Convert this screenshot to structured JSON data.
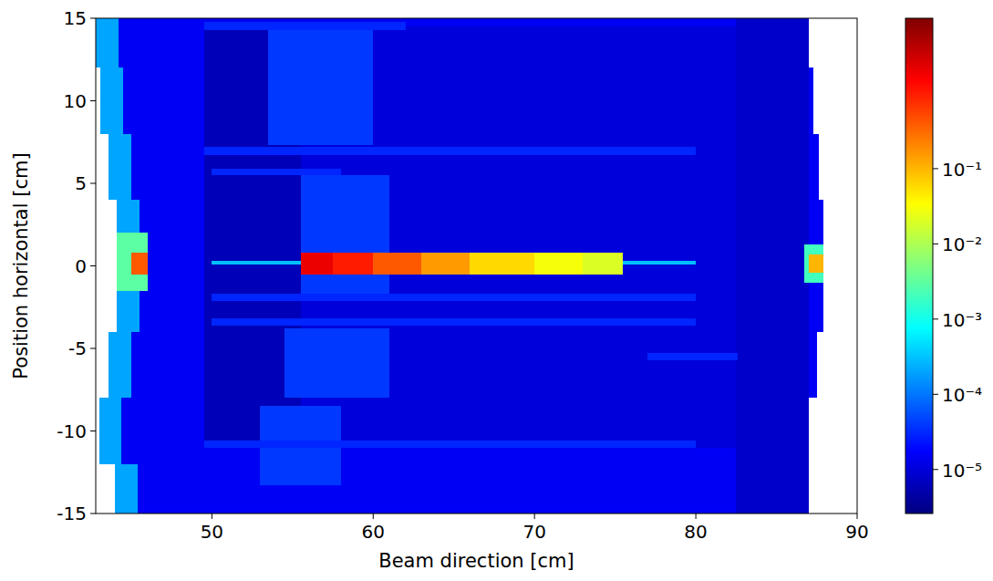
{
  "chart_data": {
    "type": "heatmap",
    "x_label": "Beam direction [cm]",
    "y_label": "Position horizontal [cm]",
    "xlim": [
      42.8,
      90
    ],
    "ylim": [
      -15,
      15
    ],
    "xticks": [
      50,
      60,
      70,
      80,
      90
    ],
    "yticks": [
      -15,
      -10,
      -5,
      0,
      5,
      10,
      15
    ],
    "colorbar": {
      "range": [
        2.6e-06,
        10
      ],
      "log": true,
      "ticks": [
        {
          "value": 1e-05,
          "label": "10⁻⁵"
        },
        {
          "value": 0.0001,
          "label": "10⁻⁴"
        },
        {
          "value": 0.001,
          "label": "10⁻³"
        },
        {
          "value": 0.01,
          "label": "10⁻²"
        },
        {
          "value": 0.1,
          "label": "10⁻¹"
        }
      ]
    },
    "cells": [
      {
        "x": [
          44.0,
          86.5
        ],
        "y": [
          -15,
          -12
        ],
        "value": 1.5e-05
      },
      {
        "x": [
          43.0,
          87.0
        ],
        "y": [
          -12,
          -8
        ],
        "value": 1.5e-05
      },
      {
        "x": [
          43.6,
          87.5
        ],
        "y": [
          -8,
          -4
        ],
        "value": 1.5e-05
      },
      {
        "x": [
          44.1,
          87.9
        ],
        "y": [
          -4,
          0
        ],
        "value": 1.5e-05
      },
      {
        "x": [
          44.1,
          87.9
        ],
        "y": [
          0,
          4
        ],
        "value": 1.5e-05
      },
      {
        "x": [
          43.6,
          87.6
        ],
        "y": [
          4,
          8
        ],
        "value": 1.5e-05
      },
      {
        "x": [
          43.1,
          87.3
        ],
        "y": [
          8,
          12
        ],
        "value": 1.5e-05
      },
      {
        "x": [
          42.8,
          87.0
        ],
        "y": [
          12,
          15
        ],
        "value": 1.5e-05
      },
      {
        "x": [
          44.0,
          45.4
        ],
        "y": [
          -15,
          -12
        ],
        "value": 0.0002
      },
      {
        "x": [
          43.0,
          44.4
        ],
        "y": [
          -12,
          -8
        ],
        "value": 0.0002
      },
      {
        "x": [
          43.6,
          45.0
        ],
        "y": [
          -8,
          -4
        ],
        "value": 0.0002
      },
      {
        "x": [
          44.1,
          45.5
        ],
        "y": [
          -4,
          0
        ],
        "value": 0.0002
      },
      {
        "x": [
          44.1,
          45.5
        ],
        "y": [
          0,
          4
        ],
        "value": 0.0002
      },
      {
        "x": [
          43.6,
          45.0
        ],
        "y": [
          4,
          8
        ],
        "value": 0.0002
      },
      {
        "x": [
          43.1,
          44.5
        ],
        "y": [
          8,
          12
        ],
        "value": 0.0002
      },
      {
        "x": [
          42.8,
          44.2
        ],
        "y": [
          12,
          15
        ],
        "value": 0.0002
      },
      {
        "x": [
          49.5,
          55.5
        ],
        "y": [
          -11,
          14.5
        ],
        "value": 6e-06
      },
      {
        "x": [
          55.5,
          82.5
        ],
        "y": [
          -11,
          14.5
        ],
        "value": 1e-05
      },
      {
        "x": [
          82.5,
          87.0
        ],
        "y": [
          -15,
          15
        ],
        "value": 8e-06
      },
      {
        "x": [
          53.5,
          60.0
        ],
        "y": [
          7.3,
          14.5
        ],
        "value": 4e-05
      },
      {
        "x": [
          55.5,
          61.0
        ],
        "y": [
          0.8,
          5.5
        ],
        "value": 4e-05
      },
      {
        "x": [
          55.5,
          61.0
        ],
        "y": [
          -1.7,
          -0.5
        ],
        "value": 4e-05
      },
      {
        "x": [
          54.5,
          61.0
        ],
        "y": [
          -8.0,
          -3.8
        ],
        "value": 4e-05
      },
      {
        "x": [
          53.0,
          58.0
        ],
        "y": [
          -13.3,
          -8.5
        ],
        "value": 4e-05
      },
      {
        "x": [
          49.5,
          80.0
        ],
        "y": [
          6.7,
          7.2
        ],
        "value": 3e-05
      },
      {
        "x": [
          50.0,
          58.0
        ],
        "y": [
          5.5,
          5.9
        ],
        "value": 3e-05
      },
      {
        "x": [
          50.0,
          80.0
        ],
        "y": [
          -2.1,
          -1.7
        ],
        "value": 3e-05
      },
      {
        "x": [
          50.0,
          80.0
        ],
        "y": [
          -3.6,
          -3.2
        ],
        "value": 3e-05
      },
      {
        "x": [
          49.5,
          80.0
        ],
        "y": [
          -11.0,
          -10.6
        ],
        "value": 3e-05
      },
      {
        "x": [
          49.5,
          62.0
        ],
        "y": [
          14.3,
          14.8
        ],
        "value": 3e-05
      },
      {
        "x": [
          77.0,
          82.6
        ],
        "y": [
          -5.7,
          -5.3
        ],
        "value": 3e-05
      },
      {
        "x": [
          50.0,
          80.0
        ],
        "y": [
          0.1,
          0.3
        ],
        "value": 0.0003
      },
      {
        "x": [
          44.1,
          46.0
        ],
        "y": [
          -1.5,
          2.0
        ],
        "value": 0.003
      },
      {
        "x": [
          45.0,
          46.0
        ],
        "y": [
          -0.5,
          0.8
        ],
        "value": 0.4
      },
      {
        "x": [
          55.5,
          57.5
        ],
        "y": [
          -0.5,
          0.8
        ],
        "value": 2
      },
      {
        "x": [
          57.5,
          60.0
        ],
        "y": [
          -0.5,
          0.8
        ],
        "value": 1
      },
      {
        "x": [
          60.0,
          63.0
        ],
        "y": [
          -0.5,
          0.8
        ],
        "value": 0.4
      },
      {
        "x": [
          63.0,
          66.0
        ],
        "y": [
          -0.5,
          0.8
        ],
        "value": 0.15
      },
      {
        "x": [
          66.0,
          70.0
        ],
        "y": [
          -0.5,
          0.8
        ],
        "value": 0.06
      },
      {
        "x": [
          70.0,
          73.0
        ],
        "y": [
          -0.5,
          0.8
        ],
        "value": 0.03
      },
      {
        "x": [
          73.0,
          75.5
        ],
        "y": [
          -0.5,
          0.8
        ],
        "value": 0.02
      },
      {
        "x": [
          86.7,
          87.9
        ],
        "y": [
          -1.0,
          1.3
        ],
        "value": 0.002
      },
      {
        "x": [
          87.0,
          87.9
        ],
        "y": [
          -0.4,
          0.7
        ],
        "value": 0.1
      }
    ]
  }
}
